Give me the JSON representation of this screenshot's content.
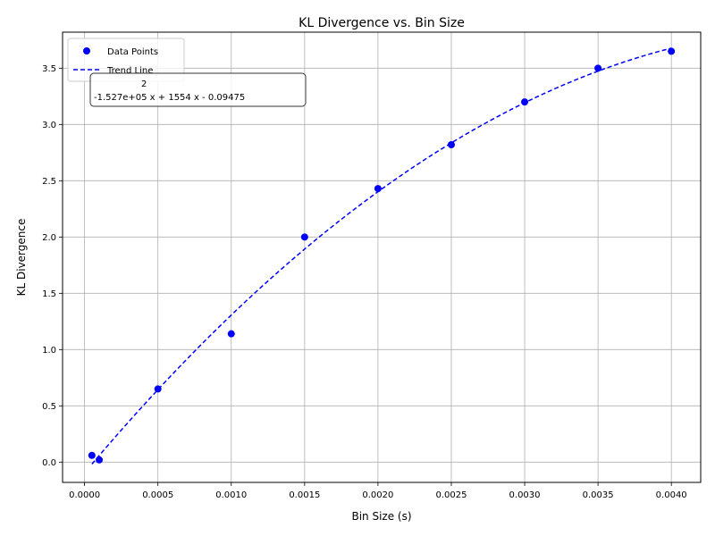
{
  "chart_data": {
    "type": "scatter",
    "title": "KL Divergence vs. Bin Size",
    "xlabel": "Bin Size (s)",
    "ylabel": "KL Divergence",
    "xlim": [
      -0.00015,
      0.0042
    ],
    "ylim": [
      -0.18,
      3.82
    ],
    "xticks": [
      "0.0000",
      "0.0005",
      "0.0010",
      "0.0015",
      "0.0020",
      "0.0025",
      "0.0030",
      "0.0035",
      "0.0040"
    ],
    "xtick_values": [
      0,
      0.0005,
      0.001,
      0.0015,
      0.002,
      0.0025,
      0.003,
      0.0035,
      0.004
    ],
    "yticks": [
      "0.0",
      "0.5",
      "1.0",
      "1.5",
      "2.0",
      "2.5",
      "3.0",
      "3.5"
    ],
    "ytick_values": [
      0,
      0.5,
      1.0,
      1.5,
      2.0,
      2.5,
      3.0,
      3.5
    ],
    "grid": true,
    "legend_position": "top-left",
    "series": [
      {
        "name": "Data Points",
        "kind": "scatter",
        "color": "#0000ff",
        "x": [
          5e-05,
          0.0001,
          0.0005,
          0.001,
          0.0015,
          0.002,
          0.0025,
          0.003,
          0.0035,
          0.004
        ],
        "y": [
          0.06,
          0.02,
          0.65,
          1.14,
          2.0,
          2.43,
          2.82,
          3.2,
          3.5,
          3.65
        ]
      },
      {
        "name": "Trend Line",
        "kind": "line",
        "style": "dashed",
        "color": "#0000ff",
        "fit": {
          "a": -152700,
          "b": 1554,
          "c": -0.09475
        },
        "x_range": [
          5e-05,
          0.004
        ]
      }
    ],
    "annotation": {
      "exponent": "2",
      "equation": "-1.527e+05 x + 1554 x - 0.09475"
    }
  }
}
